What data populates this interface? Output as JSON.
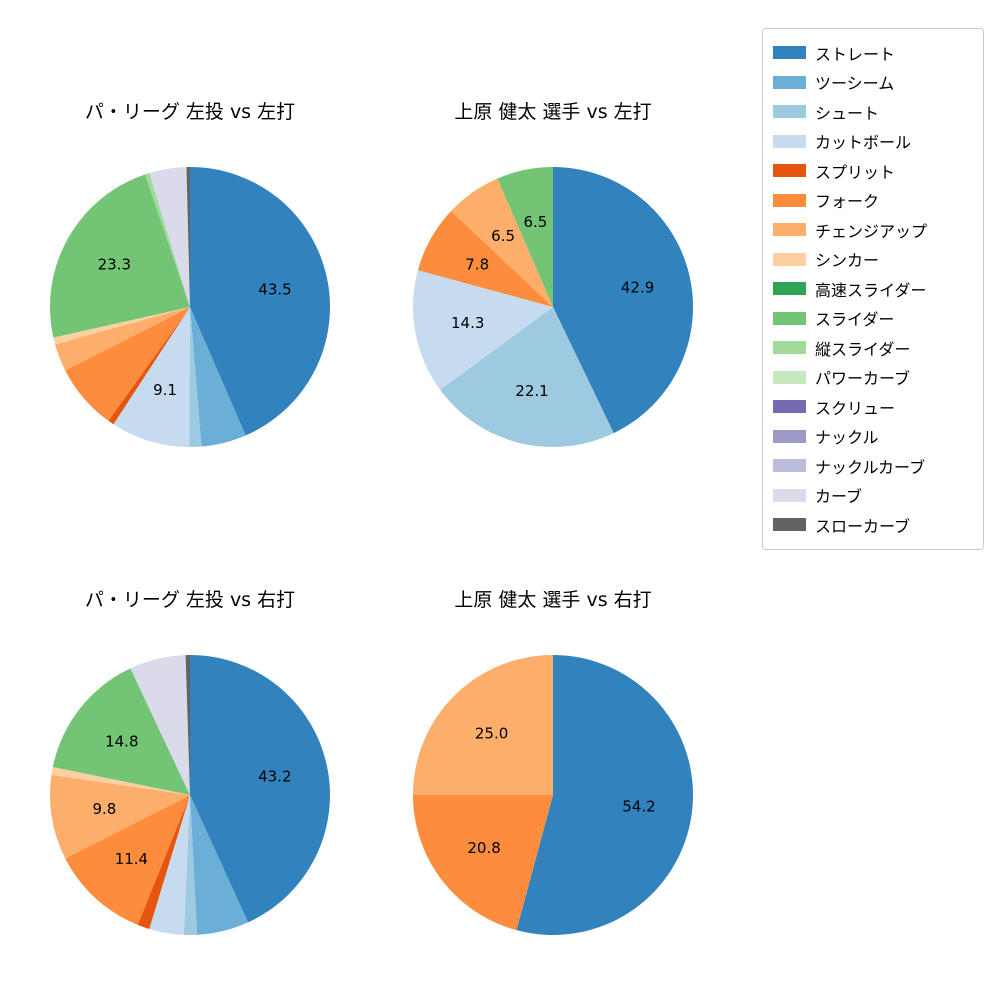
{
  "page": {
    "background": "#ffffff"
  },
  "palette": {
    "ストレート": "#3182bd",
    "ツーシーム": "#6baed6",
    "シュート": "#9ecae1",
    "カットボール": "#c6dbef",
    "スプリット": "#e6550d",
    "フォーク": "#fd8d3c",
    "チェンジアップ": "#fdae6b",
    "シンカー": "#fdd0a2",
    "高速スライダー": "#31a354",
    "スライダー": "#74c476",
    "縦スライダー": "#a1d99b",
    "パワーカーブ": "#c7e9c0",
    "スクリュー": "#756bb1",
    "ナックル": "#9e9ac8",
    "ナックルカーブ": "#bcbddc",
    "カーブ": "#dadaeb",
    "スローカーブ": "#636363"
  },
  "legend": {
    "items": [
      "ストレート",
      "ツーシーム",
      "シュート",
      "カットボール",
      "スプリット",
      "フォーク",
      "チェンジアップ",
      "シンカー",
      "高速スライダー",
      "スライダー",
      "縦スライダー",
      "パワーカーブ",
      "スクリュー",
      "ナックル",
      "ナックルカーブ",
      "カーブ",
      "スローカーブ"
    ]
  },
  "chart_data": [
    {
      "type": "pie",
      "title": "パ・リーグ 左投 vs 左打",
      "start_angle": 90,
      "direction": "clockwise",
      "units": "percent",
      "slices": [
        {
          "name": "ストレート",
          "value": 43.5,
          "label": "43.5"
        },
        {
          "name": "ツーシーム",
          "value": 5.2
        },
        {
          "name": "シュート",
          "value": 1.4
        },
        {
          "name": "カットボール",
          "value": 9.1,
          "label": "9.1"
        },
        {
          "name": "スプリット",
          "value": 0.7
        },
        {
          "name": "フォーク",
          "value": 7.6
        },
        {
          "name": "チェンジアップ",
          "value": 3.2
        },
        {
          "name": "シンカー",
          "value": 0.8
        },
        {
          "name": "スライダー",
          "value": 23.3,
          "label": "23.3"
        },
        {
          "name": "縦スライダー",
          "value": 0.5
        },
        {
          "name": "カーブ",
          "value": 4.3
        },
        {
          "name": "スローカーブ",
          "value": 0.4
        }
      ]
    },
    {
      "type": "pie",
      "title": "上原 健太 選手 vs 左打",
      "start_angle": 90,
      "direction": "clockwise",
      "units": "percent",
      "slices": [
        {
          "name": "ストレート",
          "value": 42.9,
          "label": "42.9"
        },
        {
          "name": "シュート",
          "value": 22.1,
          "label": "22.1"
        },
        {
          "name": "カットボール",
          "value": 14.3,
          "label": "14.3"
        },
        {
          "name": "フォーク",
          "value": 7.8,
          "label": "7.8"
        },
        {
          "name": "チェンジアップ",
          "value": 6.5,
          "label": "6.5"
        },
        {
          "name": "スライダー",
          "value": 6.5,
          "label": "6.5"
        }
      ]
    },
    {
      "type": "pie",
      "title": "パ・リーグ 左投 vs 右打",
      "start_angle": 90,
      "direction": "clockwise",
      "units": "percent",
      "slices": [
        {
          "name": "ストレート",
          "value": 43.2,
          "label": "43.2"
        },
        {
          "name": "ツーシーム",
          "value": 6.0
        },
        {
          "name": "シュート",
          "value": 1.5
        },
        {
          "name": "カットボール",
          "value": 4.0
        },
        {
          "name": "スプリット",
          "value": 1.4
        },
        {
          "name": "フォーク",
          "value": 11.4,
          "label": "11.4"
        },
        {
          "name": "チェンジアップ",
          "value": 9.8,
          "label": "9.8"
        },
        {
          "name": "シンカー",
          "value": 0.9
        },
        {
          "name": "スライダー",
          "value": 14.8,
          "label": "14.8"
        },
        {
          "name": "カーブ",
          "value": 6.5
        },
        {
          "name": "スローカーブ",
          "value": 0.5
        }
      ]
    },
    {
      "type": "pie",
      "title": "上原 健太 選手 vs 右打",
      "start_angle": 90,
      "direction": "clockwise",
      "units": "percent",
      "slices": [
        {
          "name": "ストレート",
          "value": 54.2,
          "label": "54.2"
        },
        {
          "name": "フォーク",
          "value": 20.8,
          "label": "20.8"
        },
        {
          "name": "チェンジアップ",
          "value": 25.0,
          "label": "25.0"
        }
      ]
    }
  ]
}
